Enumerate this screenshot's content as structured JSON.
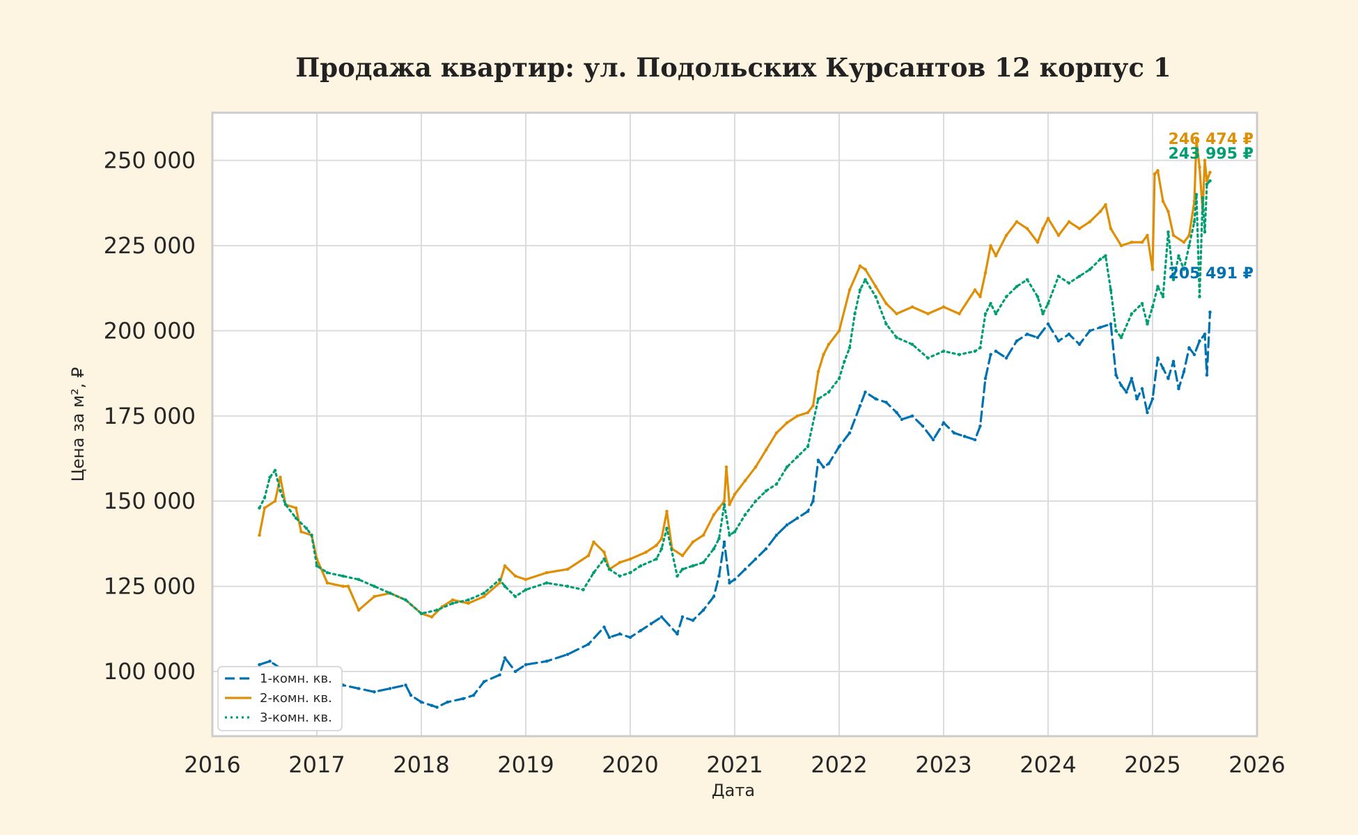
{
  "chart_data": {
    "type": "line",
    "title": "Продажа квартир: ул. Подольских Курсантов 12 корпус 1",
    "xlabel": "Дата",
    "ylabel": "Цена за м², ₽",
    "xlim": [
      2016.0,
      2026.0
    ],
    "ylim": [
      81000,
      264000
    ],
    "xticks": [
      2016,
      2017,
      2018,
      2019,
      2020,
      2021,
      2022,
      2023,
      2024,
      2025,
      2026
    ],
    "xtick_labels": [
      "2016",
      "2017",
      "2018",
      "2019",
      "2020",
      "2021",
      "2022",
      "2023",
      "2024",
      "2025",
      "2026"
    ],
    "yticks": [
      100000,
      125000,
      150000,
      175000,
      200000,
      225000,
      250000
    ],
    "ytick_labels": [
      "100 000",
      "125 000",
      "150 000",
      "175 000",
      "200 000",
      "225 000",
      "250 000"
    ],
    "grid": true,
    "legend_position": "lower-left",
    "series": [
      {
        "name": "1-комн. кв.",
        "color": "#0072b2",
        "dash": "dashed",
        "end_label": "205 491 ₽",
        "x": [
          2016.45,
          2016.55,
          2016.65,
          2016.75,
          2016.85,
          2016.95,
          2017.0,
          2017.1,
          2017.25,
          2017.4,
          2017.55,
          2017.7,
          2017.85,
          2017.9,
          2018.0,
          2018.1,
          2018.15,
          2018.25,
          2018.4,
          2018.5,
          2018.6,
          2018.75,
          2018.8,
          2018.9,
          2019.0,
          2019.2,
          2019.4,
          2019.6,
          2019.75,
          2019.8,
          2019.9,
          2020.0,
          2020.1,
          2020.2,
          2020.3,
          2020.45,
          2020.5,
          2020.6,
          2020.7,
          2020.8,
          2020.85,
          2020.9,
          2020.95,
          2021.0,
          2021.1,
          2021.2,
          2021.3,
          2021.4,
          2021.5,
          2021.6,
          2021.7,
          2021.75,
          2021.8,
          2021.85,
          2021.9,
          2022.0,
          2022.1,
          2022.2,
          2022.25,
          2022.35,
          2022.45,
          2022.55,
          2022.6,
          2022.7,
          2022.8,
          2022.9,
          2023.0,
          2023.1,
          2023.2,
          2023.3,
          2023.35,
          2023.4,
          2023.45,
          2023.5,
          2023.6,
          2023.7,
          2023.8,
          2023.9,
          2024.0,
          2024.1,
          2024.2,
          2024.3,
          2024.4,
          2024.5,
          2024.6,
          2024.65,
          2024.7,
          2024.75,
          2024.8,
          2024.85,
          2024.9,
          2024.95,
          2025.0,
          2025.05,
          2025.1,
          2025.15,
          2025.2,
          2025.25,
          2025.3,
          2025.35,
          2025.4,
          2025.45,
          2025.5,
          2025.52,
          2025.55
        ],
        "y": [
          102000,
          103000,
          101000,
          97000,
          96000,
          95000,
          96000,
          95500,
          96000,
          95000,
          94000,
          95000,
          96000,
          93000,
          91000,
          90000,
          89500,
          91000,
          92000,
          93000,
          97000,
          99000,
          104000,
          100000,
          102000,
          103000,
          105000,
          108000,
          113000,
          110000,
          111000,
          110000,
          112000,
          114000,
          116000,
          111000,
          116000,
          115000,
          118000,
          122000,
          128000,
          138000,
          126000,
          127000,
          130000,
          133000,
          136000,
          140000,
          143000,
          145000,
          147000,
          150000,
          162000,
          160000,
          161000,
          166000,
          170000,
          178000,
          182000,
          180000,
          179000,
          176000,
          174000,
          175000,
          172000,
          168000,
          173000,
          170000,
          169000,
          168000,
          172000,
          186000,
          193000,
          194000,
          192000,
          197000,
          199000,
          198000,
          202000,
          197000,
          199000,
          196000,
          200000,
          201000,
          202000,
          187000,
          184000,
          182000,
          186000,
          180000,
          183000,
          176000,
          180000,
          192000,
          189000,
          186000,
          191000,
          183000,
          188000,
          195000,
          193000,
          197000,
          199000,
          187000,
          205491
        ]
      },
      {
        "name": "2-комн. кв.",
        "color": "#de8f05",
        "dash": "solid",
        "end_label": "246 474 ₽",
        "x": [
          2016.45,
          2016.5,
          2016.6,
          2016.65,
          2016.7,
          2016.8,
          2016.85,
          2016.95,
          2017.0,
          2017.1,
          2017.25,
          2017.3,
          2017.4,
          2017.55,
          2017.7,
          2017.85,
          2018.0,
          2018.1,
          2018.2,
          2018.3,
          2018.45,
          2018.6,
          2018.75,
          2018.8,
          2018.9,
          2019.0,
          2019.2,
          2019.4,
          2019.6,
          2019.65,
          2019.75,
          2019.8,
          2019.9,
          2020.0,
          2020.15,
          2020.25,
          2020.3,
          2020.35,
          2020.4,
          2020.5,
          2020.6,
          2020.7,
          2020.8,
          2020.85,
          2020.9,
          2020.92,
          2020.95,
          2021.0,
          2021.1,
          2021.2,
          2021.3,
          2021.4,
          2021.5,
          2021.6,
          2021.7,
          2021.75,
          2021.8,
          2021.85,
          2021.9,
          2022.0,
          2022.1,
          2022.2,
          2022.25,
          2022.35,
          2022.45,
          2022.55,
          2022.7,
          2022.85,
          2023.0,
          2023.15,
          2023.3,
          2023.35,
          2023.4,
          2023.45,
          2023.5,
          2023.6,
          2023.7,
          2023.8,
          2023.9,
          2023.95,
          2024.0,
          2024.1,
          2024.2,
          2024.3,
          2024.4,
          2024.5,
          2024.55,
          2024.6,
          2024.7,
          2024.8,
          2024.9,
          2024.95,
          2025.0,
          2025.02,
          2025.05,
          2025.1,
          2025.15,
          2025.2,
          2025.3,
          2025.35,
          2025.4,
          2025.42,
          2025.45,
          2025.48,
          2025.5,
          2025.52,
          2025.55
        ],
        "y": [
          140000,
          148000,
          150000,
          157000,
          149000,
          148000,
          141000,
          140000,
          133000,
          126000,
          125000,
          125000,
          118000,
          122000,
          123000,
          121000,
          117000,
          116000,
          119000,
          121000,
          120000,
          122000,
          126000,
          131000,
          128000,
          127000,
          129000,
          130000,
          134000,
          138000,
          135000,
          130000,
          132000,
          133000,
          135000,
          137000,
          139000,
          147000,
          136000,
          134000,
          138000,
          140000,
          146000,
          148000,
          150000,
          160000,
          149000,
          152000,
          156000,
          160000,
          165000,
          170000,
          173000,
          175000,
          176000,
          178000,
          188000,
          193000,
          196000,
          200000,
          212000,
          219000,
          218000,
          213000,
          208000,
          205000,
          207000,
          205000,
          207000,
          205000,
          212000,
          210000,
          217000,
          225000,
          222000,
          228000,
          232000,
          230000,
          226000,
          230000,
          233000,
          228000,
          232000,
          230000,
          232000,
          235000,
          237000,
          230000,
          225000,
          226000,
          226000,
          228000,
          218000,
          246000,
          247000,
          238000,
          235000,
          228000,
          226000,
          228000,
          238000,
          256000,
          248000,
          235000,
          250000,
          244000,
          246474
        ]
      },
      {
        "name": "3-комн. кв.",
        "color": "#029e73",
        "dash": "dotted",
        "end_label": "243 995 ₽",
        "x": [
          2016.45,
          2016.5,
          2016.55,
          2016.6,
          2016.65,
          2016.7,
          2016.8,
          2016.9,
          2016.95,
          2017.0,
          2017.1,
          2017.25,
          2017.4,
          2017.55,
          2017.7,
          2017.85,
          2018.0,
          2018.15,
          2018.3,
          2018.45,
          2018.6,
          2018.75,
          2018.8,
          2018.9,
          2019.0,
          2019.2,
          2019.4,
          2019.55,
          2019.65,
          2019.75,
          2019.8,
          2019.9,
          2020.0,
          2020.1,
          2020.25,
          2020.3,
          2020.35,
          2020.45,
          2020.5,
          2020.6,
          2020.7,
          2020.8,
          2020.85,
          2020.9,
          2020.95,
          2021.0,
          2021.1,
          2021.2,
          2021.3,
          2021.4,
          2021.5,
          2021.6,
          2021.7,
          2021.8,
          2021.9,
          2022.0,
          2022.05,
          2022.1,
          2022.15,
          2022.2,
          2022.25,
          2022.35,
          2022.45,
          2022.55,
          2022.7,
          2022.85,
          2023.0,
          2023.15,
          2023.3,
          2023.35,
          2023.4,
          2023.45,
          2023.5,
          2023.6,
          2023.7,
          2023.8,
          2023.9,
          2023.95,
          2024.0,
          2024.1,
          2024.2,
          2024.3,
          2024.4,
          2024.5,
          2024.55,
          2024.6,
          2024.65,
          2024.7,
          2024.8,
          2024.9,
          2024.95,
          2025.0,
          2025.05,
          2025.1,
          2025.15,
          2025.2,
          2025.25,
          2025.3,
          2025.35,
          2025.4,
          2025.42,
          2025.45,
          2025.48,
          2025.5,
          2025.52,
          2025.55
        ],
        "y": [
          148000,
          151000,
          157000,
          159000,
          153000,
          149000,
          145000,
          142000,
          140000,
          131000,
          129000,
          128000,
          127000,
          125000,
          123000,
          121000,
          117000,
          118000,
          120000,
          121000,
          123000,
          127000,
          125000,
          122000,
          124000,
          126000,
          125000,
          124000,
          129000,
          133000,
          130000,
          128000,
          129000,
          131000,
          133000,
          136000,
          142000,
          128000,
          130000,
          131000,
          132000,
          136000,
          139000,
          149000,
          140000,
          141000,
          146000,
          150000,
          153000,
          155000,
          160000,
          163000,
          166000,
          180000,
          182000,
          186000,
          191000,
          195000,
          205000,
          212000,
          215000,
          210000,
          202000,
          198000,
          196000,
          192000,
          194000,
          193000,
          194000,
          195000,
          205000,
          208000,
          205000,
          210000,
          213000,
          215000,
          210000,
          205000,
          208000,
          216000,
          214000,
          216000,
          218000,
          221000,
          222000,
          212000,
          200000,
          198000,
          205000,
          208000,
          202000,
          207000,
          213000,
          210000,
          229000,
          215000,
          222000,
          218000,
          225000,
          232000,
          240000,
          210000,
          239000,
          229000,
          243000,
          243995
        ]
      }
    ]
  }
}
